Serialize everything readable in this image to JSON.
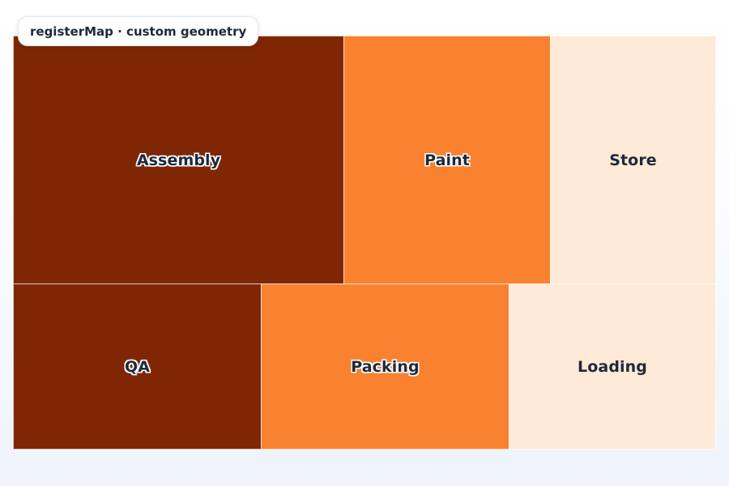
{
  "title": "registerMap · custom geometry",
  "regions": [
    {
      "name": "Assembly",
      "shade": "dark",
      "color": "#7f2704"
    },
    {
      "name": "Paint",
      "shade": "mid",
      "color": "#f98230"
    },
    {
      "name": "Store",
      "shade": "light",
      "color": "#feead6"
    },
    {
      "name": "QA",
      "shade": "dark",
      "color": "#7f2704"
    },
    {
      "name": "Packing",
      "shade": "mid",
      "color": "#f98230"
    },
    {
      "name": "Loading",
      "shade": "light",
      "color": "#feead6"
    }
  ]
}
